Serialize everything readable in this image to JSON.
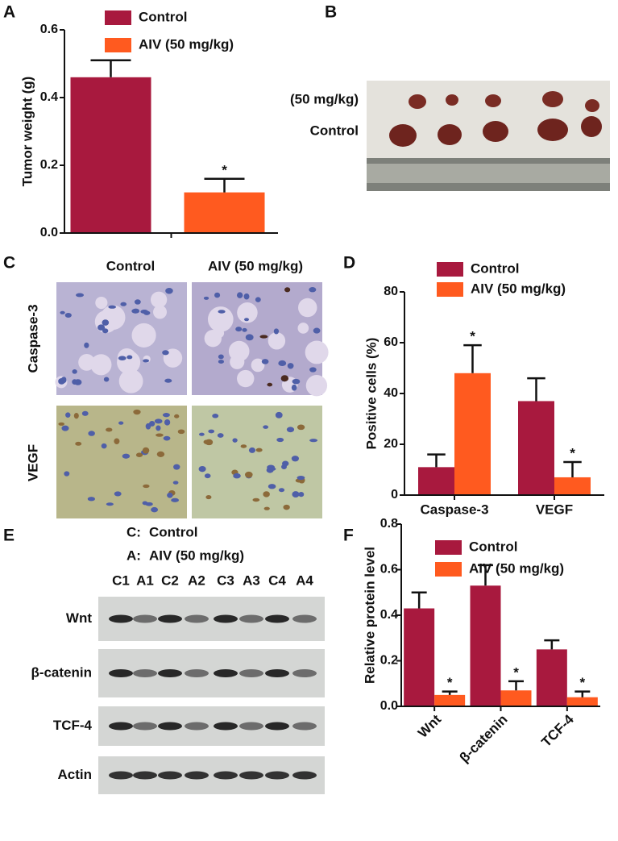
{
  "panel_labels": [
    "A",
    "B",
    "C",
    "D",
    "E",
    "F"
  ],
  "chart_data": [
    {
      "type": "bar",
      "ylabel": "Tumor weight (g)",
      "categories": [
        null
      ],
      "series": [
        {
          "name": "Control",
          "color": "#a8193e",
          "values": [
            0.46
          ],
          "errors": [
            0.05
          ],
          "significance": [
            null
          ]
        },
        {
          "name": "AIV (50 mg/kg)",
          "color": "#ff5a1f",
          "values": [
            0.12
          ],
          "errors": [
            0.04
          ],
          "significance": [
            "*"
          ]
        }
      ],
      "ylim": [
        0,
        0.6
      ],
      "yticks": [
        {
          "value": 0,
          "label": "0.0"
        },
        0.2,
        0.4,
        0.6
      ]
    },
    {
      "type": "bar",
      "ylabel": "Positive cells (%)",
      "categories": [
        "Caspase-3",
        "VEGF"
      ],
      "series": [
        {
          "name": "Control",
          "color": "#a8193e",
          "values": [
            11,
            37
          ],
          "errors": [
            5,
            9
          ],
          "significance": [
            null,
            null
          ]
        },
        {
          "name": "AIV (50 mg/kg)",
          "color": "#ff5a1f",
          "values": [
            48,
            7
          ],
          "errors": [
            11,
            6
          ],
          "significance": [
            "*",
            "*"
          ]
        }
      ],
      "ylim": [
        0,
        80
      ],
      "yticks": [
        0,
        20,
        40,
        60,
        80
      ]
    },
    {
      "type": "bar",
      "ylabel": "Relative protein level",
      "categories": [
        "Wnt",
        "β-catenin",
        "TCF-4"
      ],
      "series": [
        {
          "name": "Control",
          "color": "#a8193e",
          "values": [
            0.43,
            0.53,
            0.25
          ],
          "errors": [
            0.07,
            0.09,
            0.04
          ],
          "significance": [
            null,
            null,
            null
          ]
        },
        {
          "name": "AIV (50 mg/kg)",
          "color": "#ff5a1f",
          "values": [
            0.05,
            0.07,
            0.04
          ],
          "errors": [
            0.015,
            0.04,
            0.025
          ],
          "significance": [
            "*",
            "*",
            "*"
          ]
        }
      ],
      "ylim": [
        0,
        0.8
      ],
      "yticks": [
        {
          "value": 0,
          "label": "0.0"
        },
        0.2,
        0.4,
        0.6,
        0.8
      ]
    }
  ],
  "photo_b": {
    "rows": [
      "(50 mg/kg)",
      "Control"
    ]
  },
  "ihc_c": {
    "columns": [
      "Control",
      "AIV (50 mg/kg)"
    ],
    "rows": [
      "Caspase-3",
      "VEGF"
    ]
  },
  "blot_e": {
    "key": [
      {
        "code": "C:",
        "name": "Control"
      },
      {
        "code": "A:",
        "name": "AIV (50 mg/kg)"
      }
    ],
    "lanes": [
      "C1",
      "A1",
      "C2",
      "A2",
      "C3",
      "A3",
      "C4",
      "A4"
    ],
    "rows": [
      "Wnt",
      "β-catenin",
      "TCF-4",
      "Actin"
    ]
  }
}
